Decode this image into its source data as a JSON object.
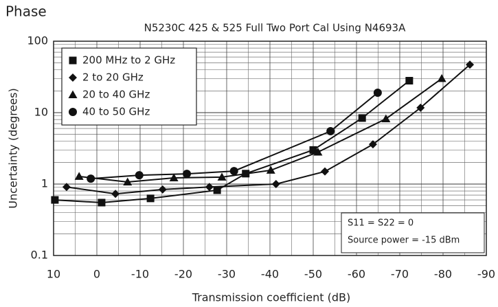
{
  "chart_data": {
    "type": "line",
    "title": "Phase",
    "subtitle": "N5230C 425 & 525 Full Two Port Cal Using N4693A",
    "x_label": "Transmission coefficient (dB)",
    "y_label": "Uncertainty (degrees)",
    "xlim": [
      10,
      -90
    ],
    "xticks": [
      10,
      0,
      -10,
      -20,
      -30,
      -40,
      -50,
      -60,
      -70,
      -80,
      -90
    ],
    "ylim": [
      0.1,
      100
    ],
    "yticks": [
      0.1,
      1,
      10,
      100
    ],
    "log_y": true,
    "grid": true,
    "legend": "upper-left",
    "annotations": [
      "S11 = S22 = 0",
      "Source power = -15 dBm"
    ],
    "series": [
      {
        "name": "200 MHz to 2 GHz",
        "marker": "square",
        "color": "#111",
        "x": [
          9.7,
          -1.1,
          -12.4,
          -27.8,
          -34.4,
          -50,
          -61.3,
          -72.2
        ],
        "values": [
          0.6,
          0.55,
          0.63,
          0.82,
          1.4,
          3.0,
          8.4,
          28
        ]
      },
      {
        "name": "2 to 20 GHz",
        "marker": "diamond",
        "color": "#111",
        "x": [
          7,
          -4.3,
          -15.2,
          -26,
          -41.4,
          -52.7,
          -63.8,
          -74.8,
          -86.2
        ],
        "values": [
          0.91,
          0.73,
          0.84,
          0.91,
          1.0,
          1.5,
          3.6,
          11.7,
          47
        ]
      },
      {
        "name": "20 to 40 GHz",
        "marker": "triangle",
        "color": "#111",
        "x": [
          4.1,
          -7.1,
          -17.8,
          -28.9,
          -40.2,
          -51.1,
          -66.8,
          -79.7
        ],
        "values": [
          1.28,
          1.07,
          1.22,
          1.25,
          1.56,
          2.8,
          8.2,
          30
        ]
      },
      {
        "name": "40 to 50 GHz",
        "marker": "circle",
        "color": "#111",
        "x": [
          1.4,
          -9.8,
          -20.8,
          -31.7,
          -54,
          -64.9
        ],
        "values": [
          1.19,
          1.33,
          1.39,
          1.52,
          5.5,
          19
        ]
      }
    ]
  }
}
